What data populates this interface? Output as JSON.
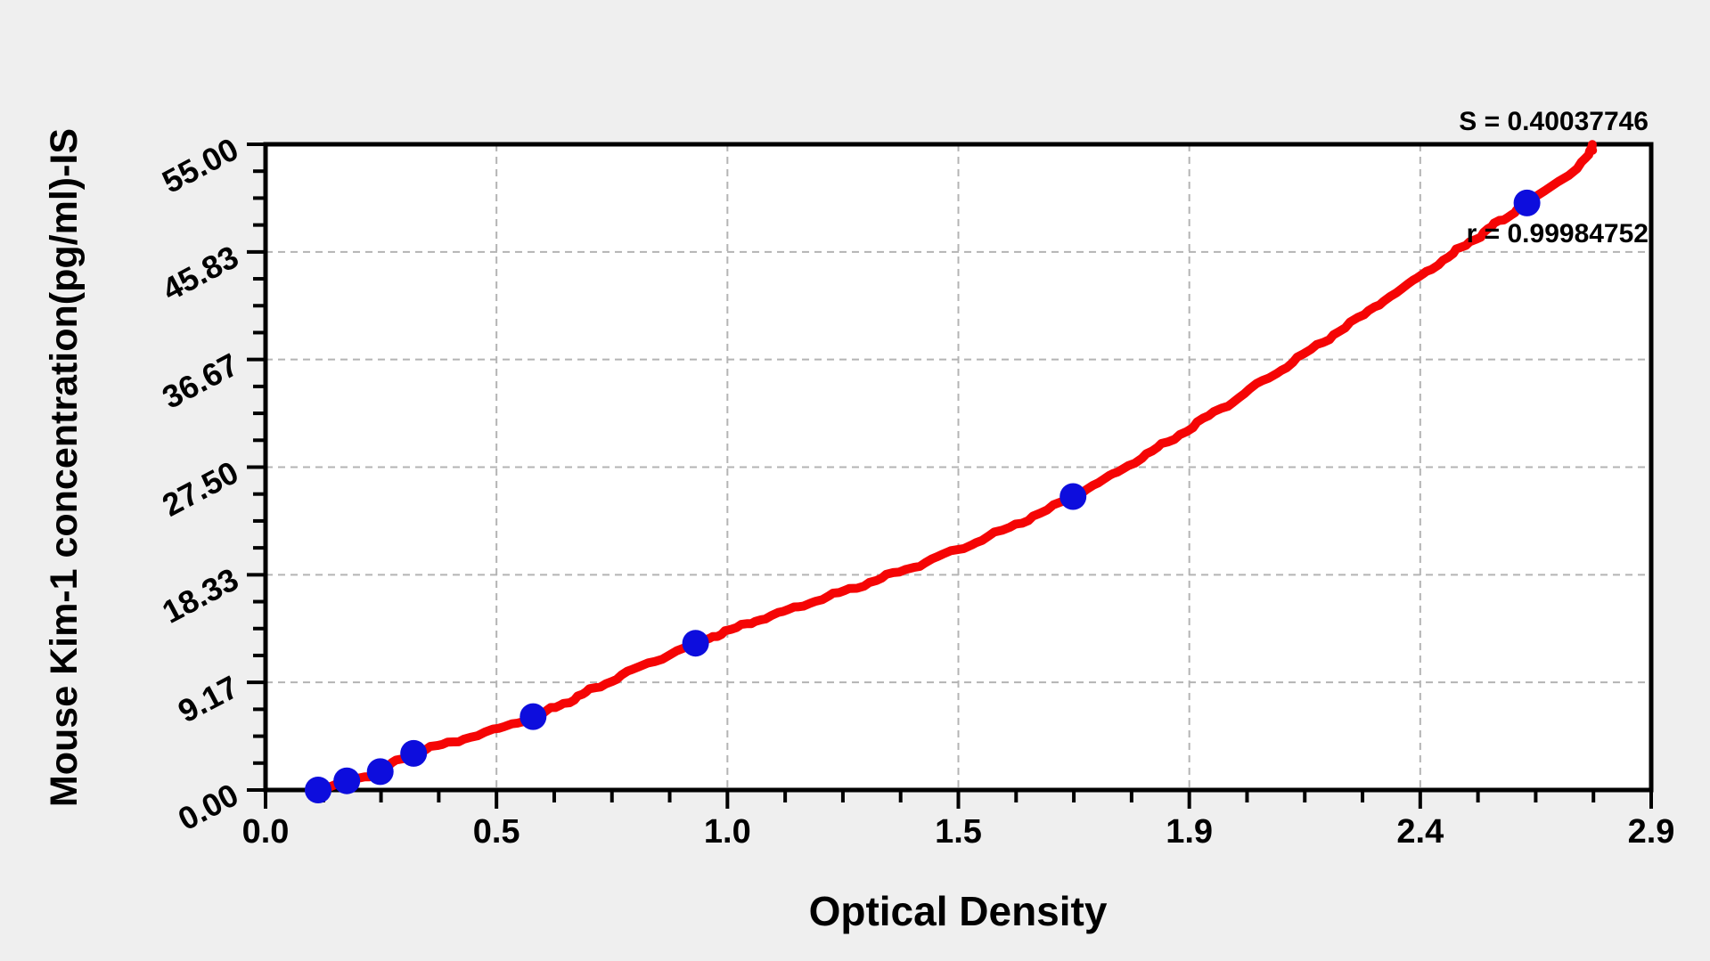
{
  "chart_data": {
    "type": "scatter",
    "xlabel": "Optical Density",
    "ylabel": "Mouse Kim-1 concentration(pg/ml)-IS",
    "stats": {
      "s": "S = 0.40037746",
      "r": "r = 0.99984752"
    },
    "x_axis": {
      "min": 0,
      "max": 2.9,
      "tick_labels": [
        "0.0",
        "0.5",
        "1.0",
        "1.5",
        "1.9",
        "2.4",
        "2.9"
      ],
      "minors_between_majors": 3
    },
    "y_axis": {
      "min": 0,
      "max": 55,
      "tick_labels": [
        "0.00",
        "9.17",
        "18.33",
        "27.50",
        "36.67",
        "45.83",
        "55.00"
      ],
      "minors_between_majors": 3
    },
    "grid": {
      "shown": true,
      "style": "dashed",
      "color": "#b4b4b4"
    },
    "series": [
      {
        "name": "standard-points",
        "type": "scatter",
        "color": "#0d0ddd",
        "points": [
          [
            0.11,
            0
          ],
          [
            0.17,
            0.78
          ],
          [
            0.24,
            1.56
          ],
          [
            0.31,
            3.12
          ],
          [
            0.56,
            6.25
          ],
          [
            0.9,
            12.5
          ],
          [
            1.69,
            25
          ],
          [
            2.64,
            50
          ]
        ]
      },
      {
        "name": "fitted-curve",
        "type": "line",
        "color": "#f50505",
        "through_points": true,
        "end_anchor": [
          2.78,
          55
        ]
      }
    ],
    "colors": {
      "page_bg": "#efefef",
      "plot_bg": "#ffffff",
      "axis": "#000000",
      "text": "#000000"
    },
    "legend": null
  }
}
